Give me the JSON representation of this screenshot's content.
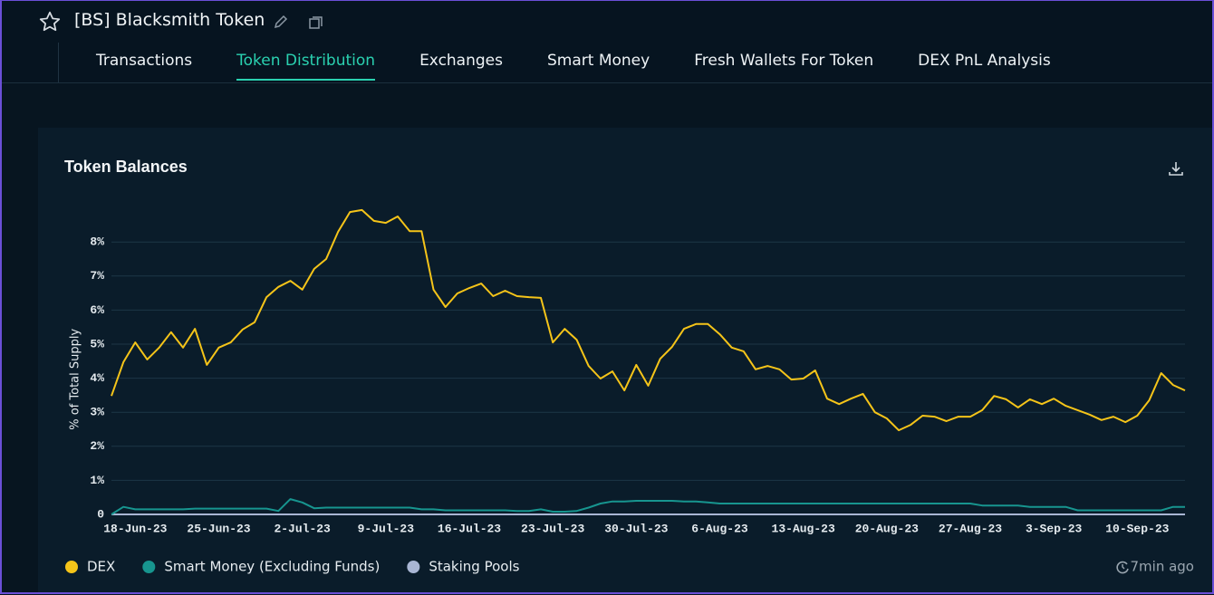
{
  "header": {
    "title": "[BS] Blacksmith Token",
    "tabs": [
      "Transactions",
      "Token Distribution",
      "Exchanges",
      "Smart Money",
      "Fresh Wallets For Token",
      "DEX PnL Analysis"
    ],
    "active_tab": 1
  },
  "updated": "7min ago",
  "chart_data": {
    "type": "line",
    "title": "Token Balances",
    "y_label": "% of Total Supply",
    "categories": [
      null,
      null,
      "18-Jun-23",
      null,
      null,
      null,
      null,
      null,
      null,
      "25-Jun-23",
      null,
      null,
      null,
      null,
      null,
      null,
      "2-Jul-23",
      null,
      null,
      null,
      null,
      null,
      null,
      "9-Jul-23",
      null,
      null,
      null,
      null,
      null,
      null,
      "16-Jul-23",
      null,
      null,
      null,
      null,
      null,
      null,
      "23-Jul-23",
      null,
      null,
      null,
      null,
      null,
      null,
      "30-Jul-23",
      null,
      null,
      null,
      null,
      null,
      null,
      "6-Aug-23",
      null,
      null,
      null,
      null,
      null,
      null,
      "13-Aug-23",
      null,
      null,
      null,
      null,
      null,
      null,
      "20-Aug-23",
      null,
      null,
      null,
      null,
      null,
      null,
      "27-Aug-23",
      null,
      null,
      null,
      null,
      null,
      null,
      "3-Sep-23",
      null,
      null,
      null,
      null,
      null,
      null,
      "10-Sep-23",
      null,
      null,
      null,
      null
    ],
    "series": [
      {
        "name": "DEX",
        "color": "#f5c419",
        "values": [
          3.48,
          4.47,
          5.05,
          4.55,
          4.9,
          5.35,
          4.9,
          5.45,
          4.39,
          4.9,
          5.05,
          5.43,
          5.64,
          6.38,
          6.68,
          6.86,
          6.6,
          7.21,
          7.5,
          8.3,
          8.88,
          8.94,
          8.62,
          8.56,
          8.75,
          8.32,
          8.32,
          6.6,
          6.09,
          6.49,
          6.65,
          6.78,
          6.41,
          6.57,
          6.41,
          6.38,
          6.36,
          5.05,
          5.45,
          5.13,
          4.36,
          3.99,
          4.2,
          3.64,
          4.39,
          3.78,
          4.57,
          4.92,
          5.45,
          5.59,
          5.59,
          5.29,
          4.9,
          4.79,
          4.26,
          4.36,
          4.26,
          3.96,
          3.99,
          4.23,
          3.4,
          3.24,
          3.4,
          3.54,
          3.0,
          2.82,
          2.47,
          2.63,
          2.9,
          2.87,
          2.74,
          2.87,
          2.87,
          3.06,
          3.48,
          3.38,
          3.14,
          3.38,
          3.24,
          3.4,
          3.19,
          3.06,
          2.93,
          2.77,
          2.87,
          2.71,
          2.9,
          3.35,
          4.15,
          3.8,
          3.64
        ]
      },
      {
        "name": "Smart Money (Excluding Funds)",
        "color": "#17958f",
        "values": [
          0,
          0.22,
          0.15,
          0.15,
          0.15,
          0.15,
          0.15,
          0.17,
          0.17,
          0.17,
          0.17,
          0.17,
          0.17,
          0.17,
          0.1,
          0.45,
          0.35,
          0.18,
          0.2,
          0.2,
          0.2,
          0.2,
          0.2,
          0.2,
          0.2,
          0.2,
          0.15,
          0.15,
          0.12,
          0.12,
          0.12,
          0.12,
          0.12,
          0.12,
          0.1,
          0.1,
          0.15,
          0.08,
          0.08,
          0.1,
          0.2,
          0.32,
          0.38,
          0.38,
          0.4,
          0.4,
          0.4,
          0.4,
          0.38,
          0.38,
          0.35,
          0.32,
          0.32,
          0.32,
          0.32,
          0.32,
          0.32,
          0.32,
          0.32,
          0.32,
          0.32,
          0.32,
          0.32,
          0.32,
          0.32,
          0.32,
          0.32,
          0.32,
          0.32,
          0.32,
          0.32,
          0.32,
          0.32,
          0.26,
          0.26,
          0.26,
          0.26,
          0.22,
          0.22,
          0.22,
          0.22,
          0.12,
          0.12,
          0.12,
          0.12,
          0.12,
          0.12,
          0.12,
          0.12,
          0.22,
          0.22
        ]
      },
      {
        "name": "Staking Pools",
        "color": "#a9b6d4",
        "values": [
          0,
          0,
          0,
          0,
          0,
          0,
          0,
          0,
          0,
          0,
          0,
          0,
          0,
          0,
          0,
          0,
          0,
          0,
          0,
          0,
          0,
          0,
          0,
          0,
          0,
          0,
          0,
          0,
          0,
          0,
          0,
          0,
          0,
          0,
          0,
          0,
          0,
          0,
          0,
          0,
          0,
          0,
          0,
          0,
          0,
          0,
          0,
          0,
          0,
          0,
          0,
          0,
          0,
          0,
          0,
          0,
          0,
          0,
          0,
          0,
          0,
          0,
          0,
          0,
          0,
          0,
          0,
          0,
          0,
          0,
          0,
          0,
          0,
          0,
          0,
          0,
          0,
          0,
          0,
          0,
          0,
          0,
          0,
          0,
          0,
          0,
          0,
          0,
          0,
          0,
          0
        ]
      }
    ],
    "ylim": [
      0,
      9
    ],
    "yticks": [
      0,
      {
        "value": 1,
        "label": "1%"
      },
      {
        "value": 2,
        "label": "2%"
      },
      {
        "value": 3,
        "label": "3%"
      },
      {
        "value": 4,
        "label": "4%"
      },
      {
        "value": 5,
        "label": "5%"
      },
      {
        "value": 6,
        "label": "6%"
      },
      {
        "value": 7,
        "label": "7%"
      },
      {
        "value": 8,
        "label": "8%"
      }
    ],
    "grid": true
  }
}
